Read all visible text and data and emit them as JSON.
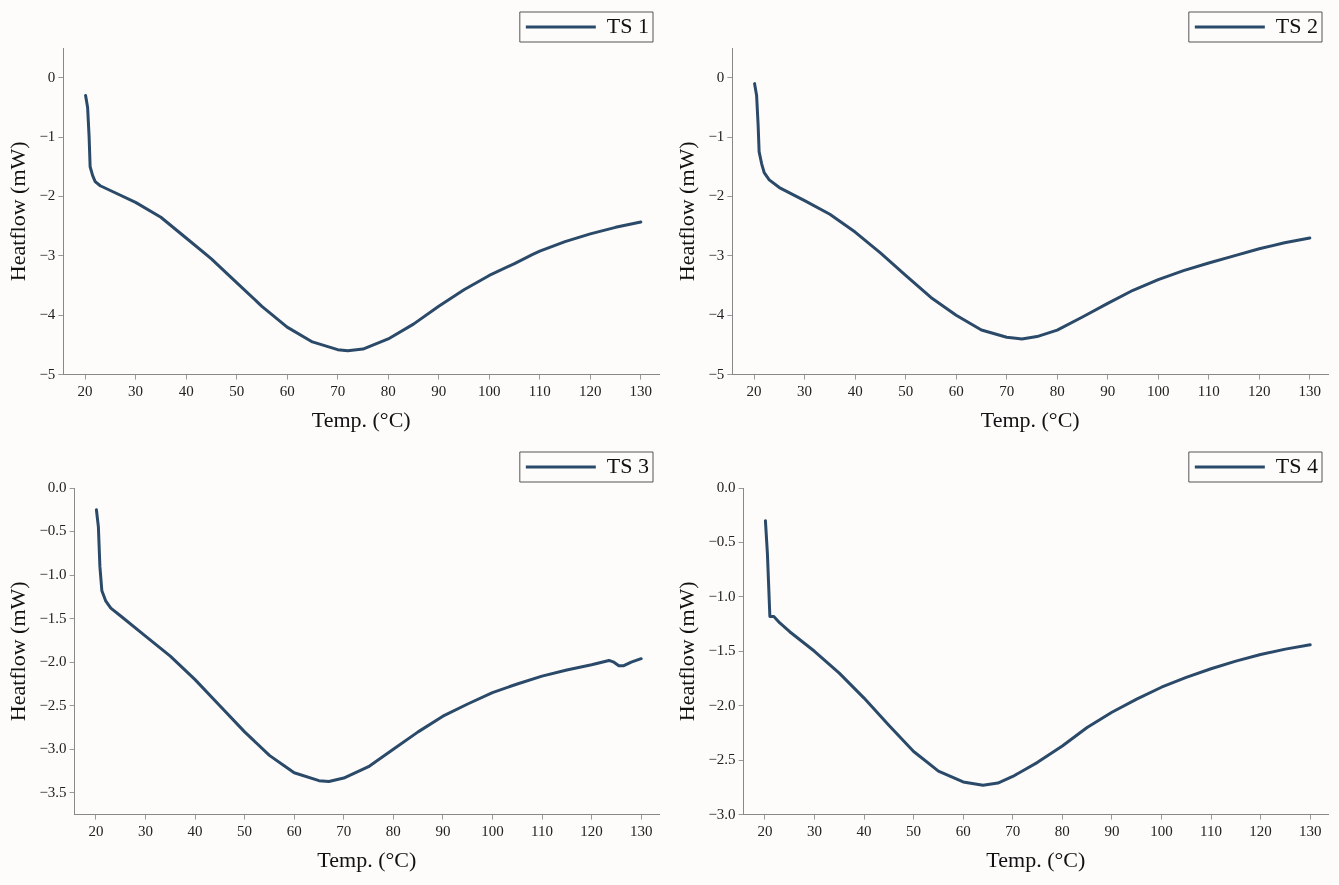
{
  "chart_data": [
    {
      "type": "line",
      "xlabel": "Temp. (°C)",
      "ylabel": "Heatflow (mW)",
      "xlim": [
        15.7,
        133.6
      ],
      "ylim": [
        -5,
        0.5
      ],
      "xticks": [
        20,
        30,
        40,
        50,
        60,
        70,
        80,
        90,
        100,
        110,
        120,
        130
      ],
      "yticks": [
        {
          "value": -5,
          "label": "−5"
        },
        {
          "value": -4,
          "label": "−4"
        },
        {
          "value": -3,
          "label": "−3"
        },
        {
          "value": -2,
          "label": "−2"
        },
        {
          "value": -1,
          "label": "−1"
        },
        0
      ],
      "grid": false,
      "legend": "top right",
      "marker": "none",
      "line_style": "solid",
      "series": [
        {
          "name": "TS 1",
          "color": "#2b4a69",
          "x": [
            20.1,
            20.5,
            20.8,
            21,
            21.5,
            22,
            23,
            25,
            30,
            35,
            40,
            45,
            50,
            55,
            60,
            65,
            70,
            72,
            75,
            80,
            85,
            90,
            95,
            100,
            105,
            108.5,
            110,
            115,
            120,
            125,
            130
          ],
          "values": [
            -0.3,
            -0.5,
            -1.0,
            -1.5,
            -1.65,
            -1.75,
            -1.82,
            -1.9,
            -2.1,
            -2.35,
            -2.7,
            -3.05,
            -3.45,
            -3.85,
            -4.2,
            -4.45,
            -4.58,
            -4.6,
            -4.57,
            -4.4,
            -4.15,
            -3.85,
            -3.57,
            -3.33,
            -3.13,
            -2.98,
            -2.92,
            -2.76,
            -2.63,
            -2.52,
            -2.43
          ]
        }
      ]
    },
    {
      "type": "line",
      "xlabel": "Temp. (°C)",
      "ylabel": "Heatflow (mW)",
      "xlim": [
        15.7,
        133.6
      ],
      "ylim": [
        -5,
        0.5
      ],
      "xticks": [
        20,
        30,
        40,
        50,
        60,
        70,
        80,
        90,
        100,
        110,
        120,
        130
      ],
      "yticks": [
        {
          "value": -5,
          "label": "−5"
        },
        {
          "value": -4,
          "label": "−4"
        },
        {
          "value": -3,
          "label": "−3"
        },
        {
          "value": -2,
          "label": "−2"
        },
        {
          "value": -1,
          "label": "−1"
        },
        0
      ],
      "grid": false,
      "legend": "top right",
      "marker": "none",
      "line_style": "solid",
      "series": [
        {
          "name": "TS 2",
          "color": "#2b4a69",
          "x": [
            20.1,
            20.5,
            20.8,
            21,
            21.5,
            22,
            23,
            25,
            30,
            35,
            40,
            45,
            50,
            55,
            60,
            65,
            70,
            73,
            76,
            80,
            85,
            90,
            95,
            100,
            105,
            110,
            115,
            120,
            125,
            130
          ],
          "values": [
            -0.1,
            -0.3,
            -0.8,
            -1.25,
            -1.45,
            -1.6,
            -1.72,
            -1.85,
            -2.07,
            -2.3,
            -2.6,
            -2.95,
            -3.33,
            -3.7,
            -4.0,
            -4.25,
            -4.37,
            -4.4,
            -4.36,
            -4.25,
            -4.03,
            -3.8,
            -3.58,
            -3.4,
            -3.25,
            -3.12,
            -3.0,
            -2.88,
            -2.78,
            -2.7
          ]
        }
      ]
    },
    {
      "type": "line",
      "xlabel": "Temp. (°C)",
      "ylabel": "Heatflow (mW)",
      "xlim": [
        15.7,
        133.6
      ],
      "ylim": [
        -3.75,
        0
      ],
      "xticks": [
        20,
        30,
        40,
        50,
        60,
        70,
        80,
        90,
        100,
        110,
        120,
        130
      ],
      "yticks": [
        {
          "value": -3.5,
          "label": "−3.5"
        },
        {
          "value": -3,
          "label": "−3.0"
        },
        {
          "value": -2.5,
          "label": "−2.5"
        },
        {
          "value": -2,
          "label": "−2.0"
        },
        {
          "value": -1.5,
          "label": "−1.5"
        },
        {
          "value": -1,
          "label": "−1.0"
        },
        {
          "value": -0.5,
          "label": "−0.5"
        },
        {
          "value": 0,
          "label": "0.0"
        }
      ],
      "grid": false,
      "legend": "top right",
      "marker": "none",
      "line_style": "solid",
      "series": [
        {
          "name": "TS 3",
          "color": "#2b4a69",
          "x": [
            20.1,
            20.5,
            20.8,
            21.2,
            22,
            23,
            25,
            30,
            35,
            40,
            45,
            50,
            55,
            60,
            65,
            67,
            70,
            75,
            80,
            85,
            90,
            95,
            100,
            105,
            110,
            115,
            120,
            123.5,
            124.5,
            125.5,
            126.5,
            128,
            130
          ],
          "values": [
            -0.25,
            -0.45,
            -0.9,
            -1.18,
            -1.3,
            -1.38,
            -1.47,
            -1.7,
            -1.93,
            -2.2,
            -2.5,
            -2.8,
            -3.07,
            -3.27,
            -3.36,
            -3.37,
            -3.33,
            -3.2,
            -3.0,
            -2.8,
            -2.62,
            -2.48,
            -2.35,
            -2.25,
            -2.16,
            -2.09,
            -2.03,
            -1.98,
            -2.0,
            -2.04,
            -2.04,
            -2.0,
            -1.96
          ]
        }
      ]
    },
    {
      "type": "line",
      "xlabel": "Temp. (°C)",
      "ylabel": "Heatflow (mW)",
      "xlim": [
        15.7,
        133.6
      ],
      "ylim": [
        -3,
        0
      ],
      "xticks": [
        20,
        30,
        40,
        50,
        60,
        70,
        80,
        90,
        100,
        110,
        120,
        130
      ],
      "yticks": [
        {
          "value": -3,
          "label": "−3.0"
        },
        {
          "value": -2.5,
          "label": "−2.5"
        },
        {
          "value": -2,
          "label": "−2.0"
        },
        {
          "value": -1.5,
          "label": "−1.5"
        },
        {
          "value": -1,
          "label": "−1.0"
        },
        {
          "value": -0.5,
          "label": "−0.5"
        },
        {
          "value": 0,
          "label": "0.0"
        }
      ],
      "grid": false,
      "legend": "top right",
      "marker": "none",
      "line_style": "solid",
      "series": [
        {
          "name": "TS 4",
          "color": "#2b4a69",
          "x": [
            20.1,
            20.5,
            21,
            21.8,
            23,
            25,
            30,
            35,
            40,
            45,
            50,
            55,
            60,
            64,
            67,
            70,
            75,
            80,
            85,
            90,
            95,
            100,
            105,
            110,
            115,
            120,
            125,
            130
          ],
          "values": [
            -0.3,
            -0.6,
            -1.18,
            -1.18,
            -1.24,
            -1.32,
            -1.5,
            -1.7,
            -1.93,
            -2.18,
            -2.42,
            -2.6,
            -2.7,
            -2.73,
            -2.71,
            -2.65,
            -2.52,
            -2.37,
            -2.2,
            -2.06,
            -1.94,
            -1.83,
            -1.74,
            -1.66,
            -1.59,
            -1.53,
            -1.48,
            -1.44
          ]
        }
      ]
    }
  ]
}
